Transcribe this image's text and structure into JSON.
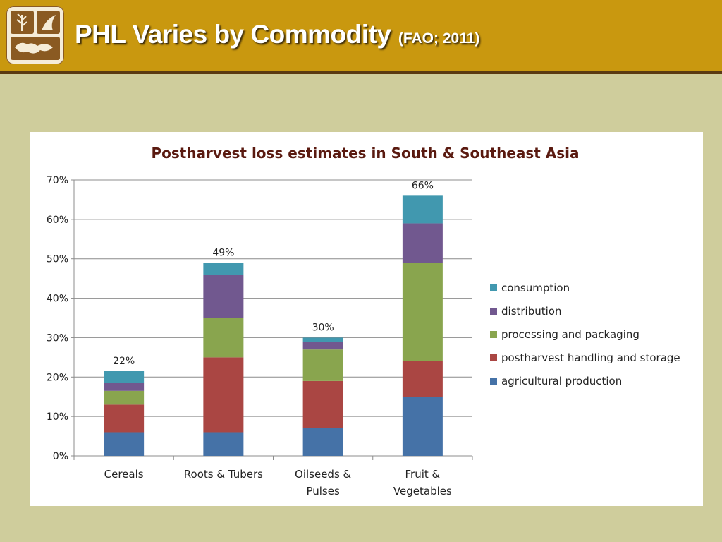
{
  "header": {
    "title": "PHL Varies by Commodity",
    "citation": "(FAO; 2011)"
  },
  "colors": {
    "header_bg": "#c9980f",
    "slide_bg": "#cfcd9c",
    "title_text": "#ffffff"
  },
  "chart_data": {
    "type": "bar",
    "stacked": true,
    "title": "Postharvest loss estimates in South & Southeast Asia",
    "categories": [
      [
        "Cereals"
      ],
      [
        "Roots & Tubers"
      ],
      [
        "Oilseeds &",
        "Pulses"
      ],
      [
        "Fruit &",
        "Vegetables"
      ]
    ],
    "series": [
      {
        "name": "agricultural production",
        "color": "#4572a7",
        "values": [
          6,
          6,
          7,
          15
        ]
      },
      {
        "name": "postharvest handling and storage",
        "color": "#aa4643",
        "values": [
          7,
          19,
          12,
          9
        ]
      },
      {
        "name": "processing and packaging",
        "color": "#89a54e",
        "values": [
          3.5,
          10,
          8,
          25
        ]
      },
      {
        "name": "distribution",
        "color": "#71588f",
        "values": [
          2,
          11,
          2,
          10
        ]
      },
      {
        "name": "consumption",
        "color": "#4198af",
        "values": [
          3,
          3,
          1,
          7
        ]
      }
    ],
    "totals": [
      "22%",
      "49%",
      "30%",
      "66%"
    ],
    "ylim": [
      0,
      70
    ],
    "yticks": [
      "0%",
      "10%",
      "20%",
      "30%",
      "40%",
      "50%",
      "60%",
      "70%"
    ],
    "grid": true,
    "legend_position": "right",
    "xlabel": "",
    "ylabel": ""
  }
}
